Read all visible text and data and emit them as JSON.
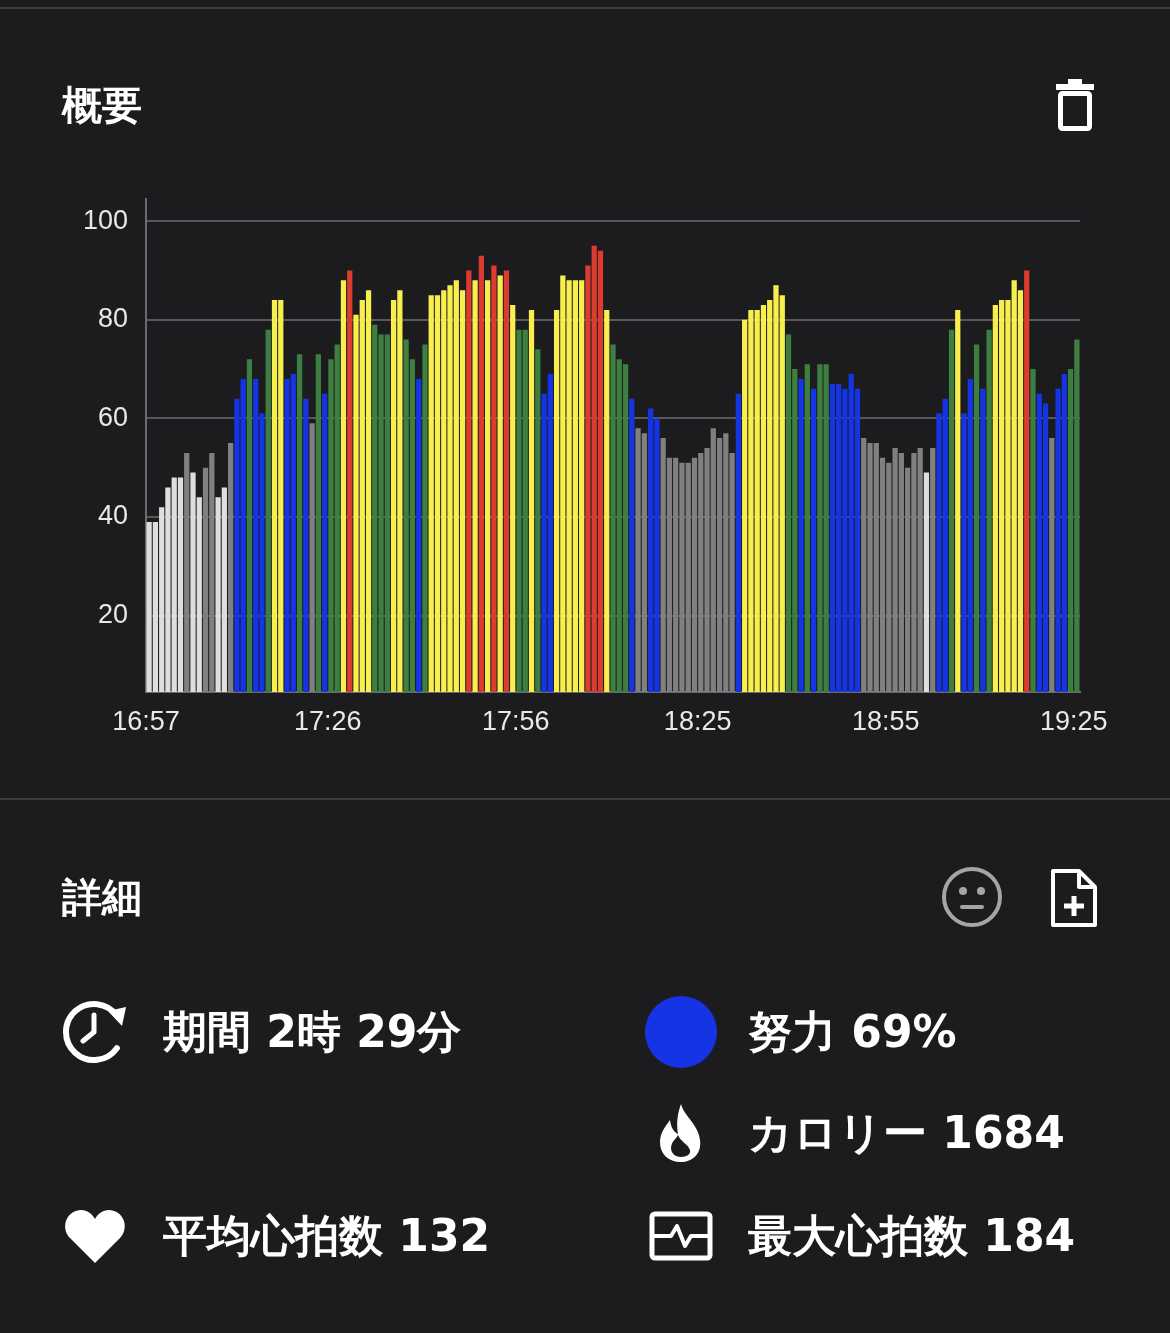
{
  "chart_data": [
    {
      "type": "bar",
      "title": "概要",
      "x": [
        16.9583,
        16.975,
        16.9917,
        17.0083,
        17.025,
        17.0417,
        17.0583,
        17.075,
        17.0917,
        17.1083,
        17.125,
        17.1417,
        17.1583,
        17.175,
        17.1917,
        17.2083,
        17.225,
        17.2417,
        17.2583,
        17.275,
        17.2917,
        17.3083,
        17.325,
        17.3417,
        17.3583,
        17.375,
        17.3917,
        17.4083,
        17.425,
        17.4417,
        17.4583,
        17.475,
        17.4917,
        17.5083,
        17.525,
        17.5417,
        17.5583,
        17.575,
        17.5917,
        17.6083,
        17.625,
        17.6417,
        17.6583,
        17.675,
        17.6917,
        17.7083,
        17.725,
        17.7417,
        17.7583,
        17.775,
        17.7917,
        17.8083,
        17.825,
        17.8417,
        17.8583,
        17.875,
        17.8917,
        17.9083,
        17.925,
        17.9417,
        17.9583,
        17.975,
        17.9917,
        18.0083,
        18.025,
        18.0417,
        18.0583,
        18.075,
        18.0917,
        18.1083,
        18.125,
        18.1417,
        18.1583,
        18.175,
        18.1917,
        18.2083,
        18.225,
        18.2417,
        18.2583,
        18.275,
        18.2917,
        18.3083,
        18.325,
        18.3417,
        18.3583,
        18.375,
        18.3917,
        18.4083,
        18.425,
        18.4417,
        18.4583,
        18.475,
        18.4917,
        18.5083,
        18.525,
        18.5417,
        18.5583,
        18.575,
        18.5917,
        18.6083,
        18.625,
        18.6417,
        18.6583,
        18.675,
        18.6917,
        18.7083,
        18.725,
        18.7417,
        18.7583,
        18.775,
        18.7917,
        18.8083,
        18.825,
        18.8417,
        18.8583,
        18.875,
        18.8917,
        18.9083,
        18.925,
        18.9417,
        18.9583,
        18.975,
        18.9917,
        19.0083,
        19.025,
        19.0417,
        19.0583,
        19.075,
        19.0917,
        19.1083,
        19.125,
        19.1417,
        19.1583,
        19.175,
        19.1917,
        19.2083,
        19.225,
        19.2417,
        19.2583,
        19.275,
        19.2917,
        19.3083,
        19.325,
        19.3417,
        19.3583,
        19.375,
        19.3917,
        19.4083,
        19.425
      ],
      "values": [
        39,
        39,
        42,
        46,
        48,
        48,
        53,
        49,
        44,
        50,
        53,
        44,
        46,
        55,
        64,
        68,
        72,
        68,
        61,
        78,
        84,
        84,
        68,
        69,
        73,
        64,
        59,
        73,
        65,
        72,
        75,
        88,
        90,
        81,
        84,
        86,
        79,
        77,
        77,
        84,
        86,
        76,
        72,
        68,
        75,
        85,
        85,
        86,
        87,
        88,
        86,
        90,
        88,
        93,
        88,
        91,
        89,
        90,
        83,
        78,
        78,
        82,
        74,
        65,
        69,
        82,
        89,
        88,
        88,
        88,
        91,
        95,
        94,
        82,
        75,
        72,
        71,
        64,
        58,
        57,
        62,
        60,
        56,
        52,
        52,
        51,
        51,
        52,
        53,
        54,
        58,
        56,
        57,
        53,
        65,
        80,
        82,
        82,
        83,
        84,
        87,
        85,
        77,
        70,
        68,
        71,
        66,
        71,
        71,
        67,
        67,
        66,
        69,
        66,
        56,
        55,
        55,
        52,
        51,
        54,
        53,
        50,
        53,
        54,
        49,
        54,
        61,
        64,
        78,
        82,
        61,
        68,
        75,
        66,
        78,
        83,
        84,
        84,
        88,
        86,
        90,
        70,
        65,
        63,
        56,
        66,
        69,
        70,
        76
      ],
      "colors": [
        "#dedede",
        "#dedede",
        "#dedede",
        "#dedede",
        "#dedede",
        "#dedede",
        "#808080",
        "#dedede",
        "#dedede",
        "#808080",
        "#808080",
        "#dedede",
        "#dedede",
        "#808080",
        "#1434e6",
        "#1434e6",
        "#3c7f41",
        "#1434e6",
        "#1434e6",
        "#3c7f41",
        "#f8ee4e",
        "#f8ee4e",
        "#1434e6",
        "#1434e6",
        "#3c7f41",
        "#1434e6",
        "#808080",
        "#3c7f41",
        "#1434e6",
        "#3c7f41",
        "#3c7f41",
        "#f8ee4e",
        "#dc3b30",
        "#f8ee4e",
        "#f8ee4e",
        "#f8ee4e",
        "#3c7f41",
        "#3c7f41",
        "#3c7f41",
        "#f8ee4e",
        "#f8ee4e",
        "#3c7f41",
        "#3c7f41",
        "#1434e6",
        "#3c7f41",
        "#f8ee4e",
        "#f8ee4e",
        "#f8ee4e",
        "#f8ee4e",
        "#f8ee4e",
        "#f8ee4e",
        "#dc3b30",
        "#f8ee4e",
        "#dc3b30",
        "#f8ee4e",
        "#dc3b30",
        "#f8ee4e",
        "#dc3b30",
        "#f8ee4e",
        "#3c7f41",
        "#3c7f41",
        "#f8ee4e",
        "#3c7f41",
        "#1434e6",
        "#1434e6",
        "#f8ee4e",
        "#f8ee4e",
        "#f8ee4e",
        "#f8ee4e",
        "#f8ee4e",
        "#dc3b30",
        "#dc3b30",
        "#dc3b30",
        "#f8ee4e",
        "#3c7f41",
        "#3c7f41",
        "#3c7f41",
        "#1434e6",
        "#808080",
        "#808080",
        "#1434e6",
        "#1434e6",
        "#808080",
        "#808080",
        "#808080",
        "#808080",
        "#808080",
        "#808080",
        "#808080",
        "#808080",
        "#808080",
        "#808080",
        "#808080",
        "#808080",
        "#1434e6",
        "#f8ee4e",
        "#f8ee4e",
        "#f8ee4e",
        "#f8ee4e",
        "#f8ee4e",
        "#f8ee4e",
        "#f8ee4e",
        "#3c7f41",
        "#3c7f41",
        "#1434e6",
        "#3c7f41",
        "#1434e6",
        "#3c7f41",
        "#3c7f41",
        "#1434e6",
        "#1434e6",
        "#1434e6",
        "#1434e6",
        "#1434e6",
        "#808080",
        "#808080",
        "#808080",
        "#808080",
        "#808080",
        "#808080",
        "#808080",
        "#808080",
        "#808080",
        "#808080",
        "#dedede",
        "#808080",
        "#1434e6",
        "#1434e6",
        "#3c7f41",
        "#f8ee4e",
        "#1434e6",
        "#1434e6",
        "#3c7f41",
        "#1434e6",
        "#3c7f41",
        "#f8ee4e",
        "#f8ee4e",
        "#f8ee4e",
        "#f8ee4e",
        "#f8ee4e",
        "#dc3b30",
        "#3c7f41",
        "#1434e6",
        "#1434e6",
        "#808080",
        "#1434e6",
        "#1434e6",
        "#3c7f41",
        "#3c7f41"
      ],
      "xlim": [
        16.95,
        19.4333
      ],
      "xticks": [
        {
          "value": 16.95,
          "label": "16:57"
        },
        {
          "value": 17.4333,
          "label": "17:26"
        },
        {
          "value": 17.9333,
          "label": "17:56"
        },
        {
          "value": 18.4167,
          "label": "18:25"
        },
        {
          "value": 18.9167,
          "label": "18:55"
        },
        {
          "value": 19.4167,
          "label": "19:25"
        }
      ],
      "ylim": [
        4.5,
        104.5
      ],
      "yticks": [
        20,
        40,
        60,
        80,
        100
      ],
      "grid": "y"
    },
    {
      "type": "other",
      "title": "詳細",
      "annotations": [
        "期間 2時 29分",
        "努力 69%",
        "カロリー 1684",
        "平均心拍数 132",
        "最大心拍数 184"
      ]
    }
  ]
}
